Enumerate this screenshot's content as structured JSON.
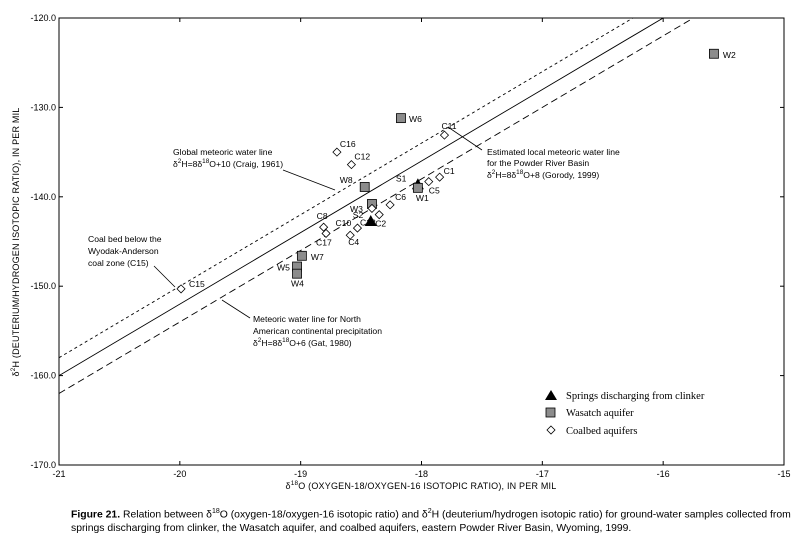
{
  "chart_data": {
    "type": "scatter",
    "xlabel": {
      "pre": "δ",
      "sup": "18",
      "post": "O (OXYGEN-18/OXYGEN-16 ISOTOPIC RATIO), IN PER MIL"
    },
    "ylabel": {
      "pre": "δ",
      "sup": "2",
      "post": "H (DEUTERIUM/HYDROGEN ISOTOPIC RATIO), IN PER MIL"
    },
    "xlim": [
      -21,
      -15
    ],
    "ylim": [
      -170,
      -120
    ],
    "x_ticks": [
      -21,
      -20,
      -19,
      -18,
      -17,
      -16,
      -15
    ],
    "x_tick_labels": [
      "-21",
      "-20",
      "-19",
      "-18",
      "-17",
      "-16",
      "-15"
    ],
    "y_ticks": [
      -120,
      -130,
      -140,
      -150,
      -160,
      -170
    ],
    "y_tick_labels": [
      "-120.0",
      "-130.0",
      "-140.0",
      "-150.0",
      "-160.0",
      "-170.0"
    ],
    "grid": false,
    "legend_position": "bottom-right",
    "lines": [
      {
        "name": "Global meteoric water line",
        "slope": 8,
        "intercept": 10,
        "style": "short-dash"
      },
      {
        "name": "Estimated local meteoric water line",
        "slope": 8,
        "intercept": 8,
        "style": "solid"
      },
      {
        "name": "Meteoric water line for North American continental precipitation",
        "slope": 8,
        "intercept": 6,
        "style": "long-dash"
      }
    ],
    "series": [
      {
        "name": "Springs discharging from clinker",
        "marker": "triangle",
        "points": [
          {
            "label": "S1",
            "x": -18.03,
            "y": -138.6
          },
          {
            "label": "S2",
            "x": -18.42,
            "y": -142.7
          }
        ]
      },
      {
        "name": "Wasatch aquifer",
        "marker": "square",
        "points": [
          {
            "label": "W2",
            "x": -15.58,
            "y": -124.0
          },
          {
            "label": "W6",
            "x": -18.17,
            "y": -131.2
          },
          {
            "label": "W8",
            "x": -18.47,
            "y": -138.9
          },
          {
            "label": "W3",
            "x": -18.41,
            "y": -140.8
          },
          {
            "label": "W1",
            "x": -18.03,
            "y": -139.0
          },
          {
            "label": "W7",
            "x": -18.99,
            "y": -146.6
          },
          {
            "label": "W5",
            "x": -19.03,
            "y": -147.8
          },
          {
            "label": "W4",
            "x": -19.03,
            "y": -148.6
          }
        ]
      },
      {
        "name": "Coalbed aquifers",
        "marker": "diamond",
        "points": [
          {
            "label": "C16",
            "x": -18.7,
            "y": -135.0
          },
          {
            "label": "C12",
            "x": -18.58,
            "y": -136.4
          },
          {
            "label": "C11",
            "x": -17.81,
            "y": -133.1
          },
          {
            "label": "C1",
            "x": -17.85,
            "y": -137.8
          },
          {
            "label": "C5",
            "x": -17.94,
            "y": -138.3
          },
          {
            "label": "C6",
            "x": -18.26,
            "y": -140.9
          },
          {
            "label": "C2",
            "x": -18.35,
            "y": -142.0
          },
          {
            "label": "C13",
            "x": -18.41,
            "y": -141.3
          },
          {
            "label": "C10",
            "x": -18.53,
            "y": -143.5
          },
          {
            "label": "C4",
            "x": -18.59,
            "y": -144.3
          },
          {
            "label": "C8",
            "x": -18.81,
            "y": -143.4
          },
          {
            "label": "C17",
            "x": -18.79,
            "y": -144.1
          },
          {
            "label": "C15",
            "x": -19.99,
            "y": -150.3
          }
        ]
      }
    ],
    "annotations": {
      "global": {
        "line1": "Global meteoric water line",
        "pre": "δ",
        "s1": "2",
        "mid": "H=8δ",
        "s2": "18",
        "post": "O+10 (Craig, 1961)"
      },
      "local": {
        "line1": "Estimated local meteoric water line",
        "line2": "for the Powder River Basin",
        "pre": "δ",
        "s1": "2",
        "mid": "H=8δ",
        "s2": "18",
        "post": "O+8 (Gorody, 1999)"
      },
      "coal": {
        "line1": "Coal bed below the",
        "line2": "Wyodak-Anderson",
        "line3": "coal zone (C15)"
      },
      "na": {
        "line1": "Meteoric water line for North",
        "line2": "American continental precipitation",
        "pre": "δ",
        "s1": "2",
        "mid": "H=8δ",
        "s2": "18",
        "post": "O+6 (Gat, 1980)"
      }
    }
  },
  "caption": {
    "figure_label": "Figure 21.",
    "text_1": " Relation between δ",
    "sup_1": "18",
    "text_2": "O (oxygen-18/oxygen-16 isotopic ratio) and δ",
    "sup_2": "2",
    "text_3": "H (deuterium/hydrogen isotopic ratio) for ground-water samples collected from springs discharging from clinker, the Wasatch aquifer, and coalbed aquifers, eastern Powder River Basin, Wyoming, 1999."
  }
}
